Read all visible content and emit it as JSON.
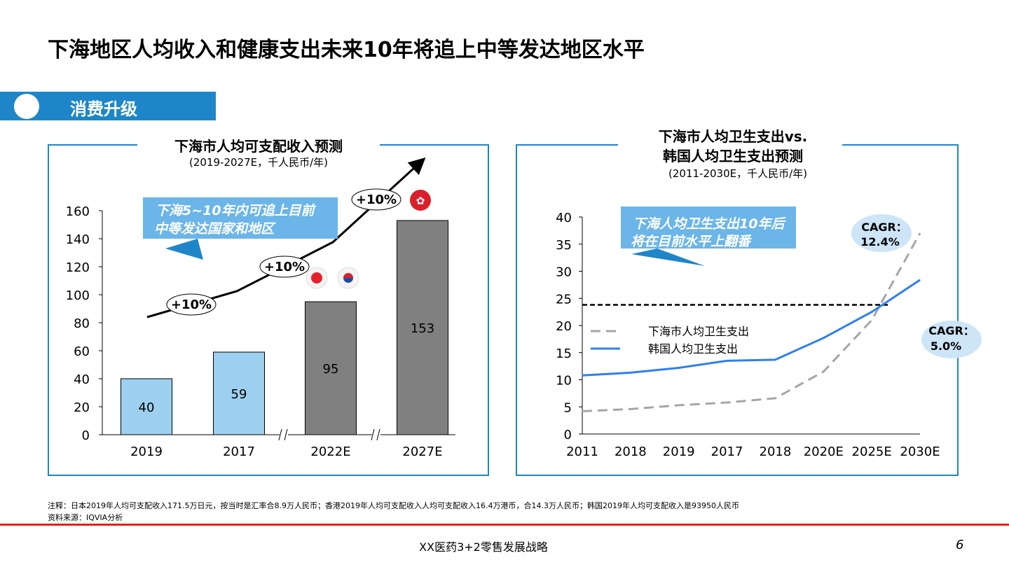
{
  "title": "下海地区人均收入和健康支出未来10年将追上中等发达地区水平",
  "section": {
    "label": "消费升级"
  },
  "colors": {
    "accent": "#1e86c8",
    "callout": "#6bb5e8",
    "bar_actual": "#9dcfee",
    "bar_forecast": "#808080",
    "shanghai_line": "#a6a6a6",
    "korea_line": "#2f7ff0",
    "red_rule": "#d9241c",
    "cagr_bubble": "#cde5f7"
  },
  "left_panel": {
    "title": "下海市人均可支配收入预测",
    "subtitle": "(2019-2027E，千人民币/年)",
    "callout": [
      "下海5~10年内可追上目前",
      "中等发达国家和地区"
    ],
    "growth_labels": [
      "+10%",
      "+10%",
      "+10%"
    ],
    "flags": [
      "japan-flag-icon",
      "korea-flag-icon",
      "hong-kong-flag-icon"
    ]
  },
  "right_panel": {
    "title_line1": "下海市人均卫生支出vs.",
    "title_line2": "韩国人均卫生支出预测",
    "subtitle": "(2011-2030E，千人民币/年)",
    "callout": [
      "下海人均卫生支出10年后",
      "将在目前水平上翻番"
    ],
    "cagr_shanghai": [
      "CAGR：",
      "12.4%"
    ],
    "cagr_korea": [
      "CAGR：",
      "5.0%"
    ]
  },
  "chart_data": [
    {
      "type": "bar",
      "categories": [
        "2019",
        "2017",
        "2022E",
        "2027E"
      ],
      "values": [
        40,
        59,
        95,
        153
      ],
      "data_labels": [
        "40",
        "59",
        "95",
        "153"
      ],
      "forecast": [
        false,
        false,
        true,
        true
      ],
      "ylim": [
        0,
        160
      ],
      "yticks": [
        "0",
        "20",
        "40",
        "60",
        "80",
        "100",
        "120",
        "140",
        "160"
      ],
      "grid": false
    },
    {
      "type": "line",
      "categories": [
        "2011",
        "2018",
        "2019",
        "2017",
        "2018",
        "2020E",
        "2025E",
        "2030E"
      ],
      "series": [
        {
          "name": "下海市人均卫生支出",
          "style": "dashed",
          "values": [
            4.2,
            4.6,
            5.3,
            5.8,
            6.6,
            11.5,
            21.0,
            37.0
          ]
        },
        {
          "name": "韩国人均卫生支出",
          "style": "solid",
          "values": [
            10.8,
            11.3,
            12.2,
            13.5,
            13.7,
            17.7,
            22.5,
            28.4
          ]
        }
      ],
      "reference_line": 23.8,
      "ylim": [
        0,
        40
      ],
      "yticks": [
        "0",
        "5",
        "10",
        "15",
        "20",
        "25",
        "30",
        "35",
        "40"
      ],
      "legend": "center-left",
      "grid": false
    }
  ],
  "footnote": {
    "note": "注释：日本2019年人均可支配收入171.5万日元，按当时是汇率合8.9万人民币；香港2019年人均可支配收入人均可支配收入16.4万港币，合14.3万人民币；韩国2019年人均可支配收入是93950人民币",
    "source": "资料来源：IQVIA分析"
  },
  "footer": {
    "text": "XX医药3+2零售发展战略",
    "page": "6"
  }
}
